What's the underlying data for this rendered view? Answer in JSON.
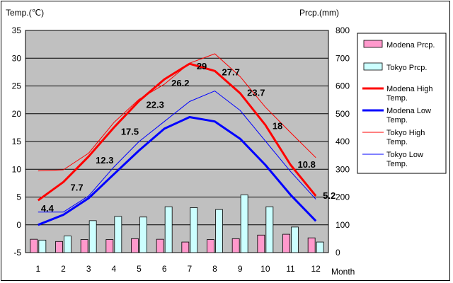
{
  "chart_data": {
    "type": "combo",
    "left_axis_title": "Temp.(℃)",
    "right_axis_title": "Prcp.(mm)",
    "x_axis_title": "Month",
    "categories": [
      "1",
      "2",
      "3",
      "4",
      "5",
      "6",
      "7",
      "8",
      "9",
      "10",
      "11",
      "12"
    ],
    "y_left_ticks": [
      "35",
      "30",
      "25",
      "20",
      "15",
      "10",
      "5",
      "0",
      "-5"
    ],
    "y_right_ticks": [
      "800",
      "700",
      "600",
      "500",
      "400",
      "300",
      "200",
      "100",
      "0"
    ],
    "ylim_left": [
      -5,
      35
    ],
    "ylim_right": [
      0,
      800
    ],
    "grid": true,
    "legend_position": "right",
    "bar_series": [
      {
        "name": "Modena Prcp.",
        "color": "#ff99cc",
        "values": [
          48,
          40,
          47,
          47,
          50,
          48,
          38,
          47,
          50,
          63,
          66,
          53
        ]
      },
      {
        "name": "Tokyo Prcp.",
        "color": "#ccffff",
        "values": [
          45,
          60,
          115,
          130,
          128,
          165,
          162,
          155,
          208,
          165,
          92,
          38
        ]
      }
    ],
    "line_series": [
      {
        "name": "Modena High Temp.",
        "color": "#ff0000",
        "width": 3,
        "values": [
          4.4,
          7.7,
          12.3,
          17.5,
          22.3,
          26.2,
          29,
          27.7,
          23.7,
          18,
          10.8,
          5.2
        ],
        "labels": [
          "4.4",
          "7.7",
          "12.3",
          "17.5",
          "22.3",
          "26.2",
          "29",
          "27.7",
          "23.7",
          "18",
          "10.8",
          "5.2"
        ]
      },
      {
        "name": "Modena Low Temp.",
        "color": "#0000ff",
        "width": 3,
        "values": [
          0,
          1.8,
          4.8,
          9.1,
          13.4,
          17.3,
          19.4,
          18.6,
          15.5,
          10.8,
          5.4,
          0.7
        ]
      },
      {
        "name": "Tokyo High Temp.",
        "color": "#ff0000",
        "width": 1,
        "values": [
          9.7,
          9.9,
          12.9,
          18.4,
          22.6,
          25.3,
          29.1,
          30.8,
          26.7,
          21.2,
          16.6,
          12.1
        ]
      },
      {
        "name": "Tokyo Low Temp.",
        "color": "#0000ff",
        "width": 1,
        "values": [
          2.3,
          2.3,
          5.2,
          10.4,
          15,
          18.6,
          22.2,
          24.1,
          20.6,
          15.1,
          9.6,
          4.6
        ]
      }
    ],
    "legend": [
      {
        "label": "Modena Prcp.",
        "kind": "box",
        "color": "#ff99cc"
      },
      {
        "label": "Tokyo Prcp.",
        "kind": "box",
        "color": "#ccffff"
      },
      {
        "label": "Modena High Temp.",
        "kind": "line",
        "color": "#ff0000",
        "width": 3
      },
      {
        "label": "Modena Low Temp.",
        "kind": "line",
        "color": "#0000ff",
        "width": 3
      },
      {
        "label": "Tokyo High Temp.",
        "kind": "line",
        "color": "#ff0000",
        "width": 1
      },
      {
        "label": "Tokyo Low Temp.",
        "kind": "line",
        "color": "#0000ff",
        "width": 1
      }
    ]
  }
}
